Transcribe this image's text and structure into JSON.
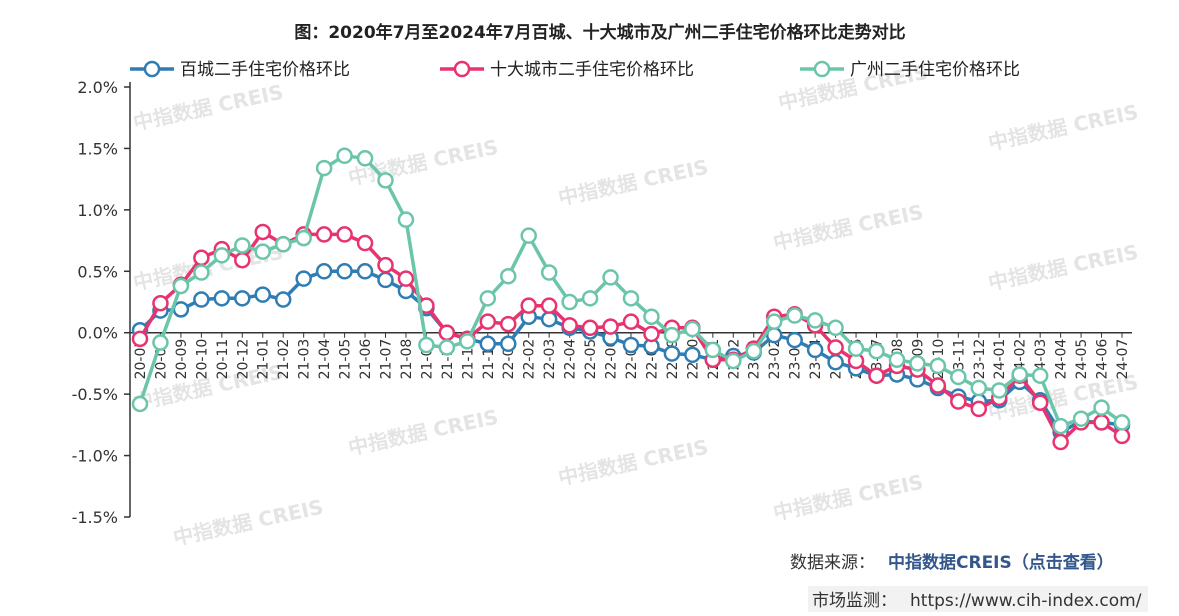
{
  "chart_data": {
    "type": "line",
    "title": "图：2020年7月至2024年7月百城、十大城市及广州二手住宅价格环比走势对比",
    "xlabel": "",
    "ylabel": "",
    "ylim": [
      -1.5,
      2.0
    ],
    "yticks": [
      "2.0%",
      "1.5%",
      "1.0%",
      "0.5%",
      "0.0%",
      "-0.5%",
      "-1.0%",
      "-1.5%"
    ],
    "legend_position": "top",
    "grid": false,
    "categories": [
      "20-07",
      "20-08",
      "20-09",
      "20-10",
      "20-11",
      "20-12",
      "21-01",
      "21-02",
      "21-03",
      "21-04",
      "21-05",
      "21-06",
      "21-07",
      "21-08",
      "21-09",
      "21-10",
      "21-11",
      "21-12",
      "22-01",
      "22-02",
      "22-03",
      "22-04",
      "22-05",
      "22-06",
      "22-07",
      "22-08",
      "22-09",
      "22-10",
      "22-11",
      "22-12",
      "23-01",
      "23-02",
      "23-03",
      "23-04",
      "23-05",
      "23-06",
      "23-07",
      "23-08",
      "23-09",
      "23-10",
      "23-11",
      "23-12",
      "24-01",
      "24-02",
      "24-03",
      "24-04",
      "24-05",
      "24-06",
      "24-07"
    ],
    "tick_labels": [
      "20-07",
      "20-08",
      "20-09",
      "20-10",
      "20-11",
      "20-12",
      "21-01",
      "21-02",
      "21-03",
      "21-04",
      "21-05",
      "21-06",
      "21-07",
      "21-08",
      "21-09",
      "21-10",
      "21-11",
      "21-12",
      "22-01",
      "22-02",
      "22-03",
      "22-04",
      "22-05",
      "22-06",
      "22-07",
      "22-08",
      "22-09",
      "22-10",
      "22-11",
      "22-12",
      "23-01",
      "23-02",
      "23-03",
      "23-04",
      "23-05",
      "23-06",
      "23-07",
      "23-08",
      "23-09",
      "23-10",
      "23-11",
      "23-12",
      "24-01",
      "24-02",
      "24-03",
      "24-04",
      "24-05",
      "24-06",
      "24-07"
    ],
    "series": [
      {
        "name": "百城二手住宅价格环比",
        "color": "#2e7db5",
        "values": [
          0.02,
          0.18,
          0.19,
          0.27,
          0.28,
          0.28,
          0.31,
          0.27,
          0.44,
          0.5,
          0.5,
          0.5,
          0.43,
          0.34,
          0.2,
          0.0,
          -0.05,
          -0.09,
          -0.09,
          0.13,
          0.11,
          0.04,
          0.01,
          -0.04,
          -0.1,
          -0.11,
          -0.17,
          -0.18,
          -0.22,
          -0.19,
          -0.16,
          -0.02,
          -0.06,
          -0.14,
          -0.24,
          -0.29,
          -0.35,
          -0.34,
          -0.38,
          -0.45,
          -0.52,
          -0.56,
          -0.55,
          -0.4,
          -0.55,
          -0.81,
          -0.72,
          -0.73,
          -0.75
        ]
      },
      {
        "name": "十大城市二手住宅价格环比",
        "color": "#e8336e",
        "values": [
          -0.05,
          0.24,
          0.39,
          0.61,
          0.68,
          0.59,
          0.82,
          0.72,
          0.8,
          0.8,
          0.8,
          0.73,
          0.55,
          0.44,
          0.22,
          0.0,
          -0.05,
          0.09,
          0.07,
          0.22,
          0.22,
          0.06,
          0.04,
          0.05,
          0.09,
          -0.01,
          0.04,
          0.04,
          -0.22,
          -0.22,
          -0.13,
          0.13,
          0.15,
          0.06,
          -0.12,
          -0.23,
          -0.35,
          -0.27,
          -0.3,
          -0.43,
          -0.56,
          -0.62,
          -0.53,
          -0.35,
          -0.57,
          -0.89,
          -0.73,
          -0.73,
          -0.84
        ]
      },
      {
        "name": "广州二手住宅价格环比",
        "color": "#6bc5aa",
        "values": [
          -0.58,
          -0.08,
          0.38,
          0.49,
          0.63,
          0.71,
          0.66,
          0.72,
          0.77,
          1.34,
          1.44,
          1.42,
          1.24,
          0.92,
          -0.1,
          -0.12,
          -0.07,
          0.28,
          0.46,
          0.79,
          0.49,
          0.25,
          0.28,
          0.45,
          0.28,
          0.13,
          -0.02,
          0.03,
          -0.14,
          -0.23,
          -0.15,
          0.09,
          0.14,
          0.1,
          0.04,
          -0.13,
          -0.15,
          -0.22,
          -0.25,
          -0.27,
          -0.36,
          -0.45,
          -0.47,
          -0.34,
          -0.35,
          -0.76,
          -0.7,
          -0.61,
          -0.73
        ]
      }
    ]
  },
  "watermark_text": "中指数据 CREIS",
  "footer": {
    "source_label": "数据来源：",
    "source_link": "中指数据CREIS（点击查看）",
    "monitor_label": "市场监测：",
    "monitor_url": "https://www.cih-index.com/"
  }
}
